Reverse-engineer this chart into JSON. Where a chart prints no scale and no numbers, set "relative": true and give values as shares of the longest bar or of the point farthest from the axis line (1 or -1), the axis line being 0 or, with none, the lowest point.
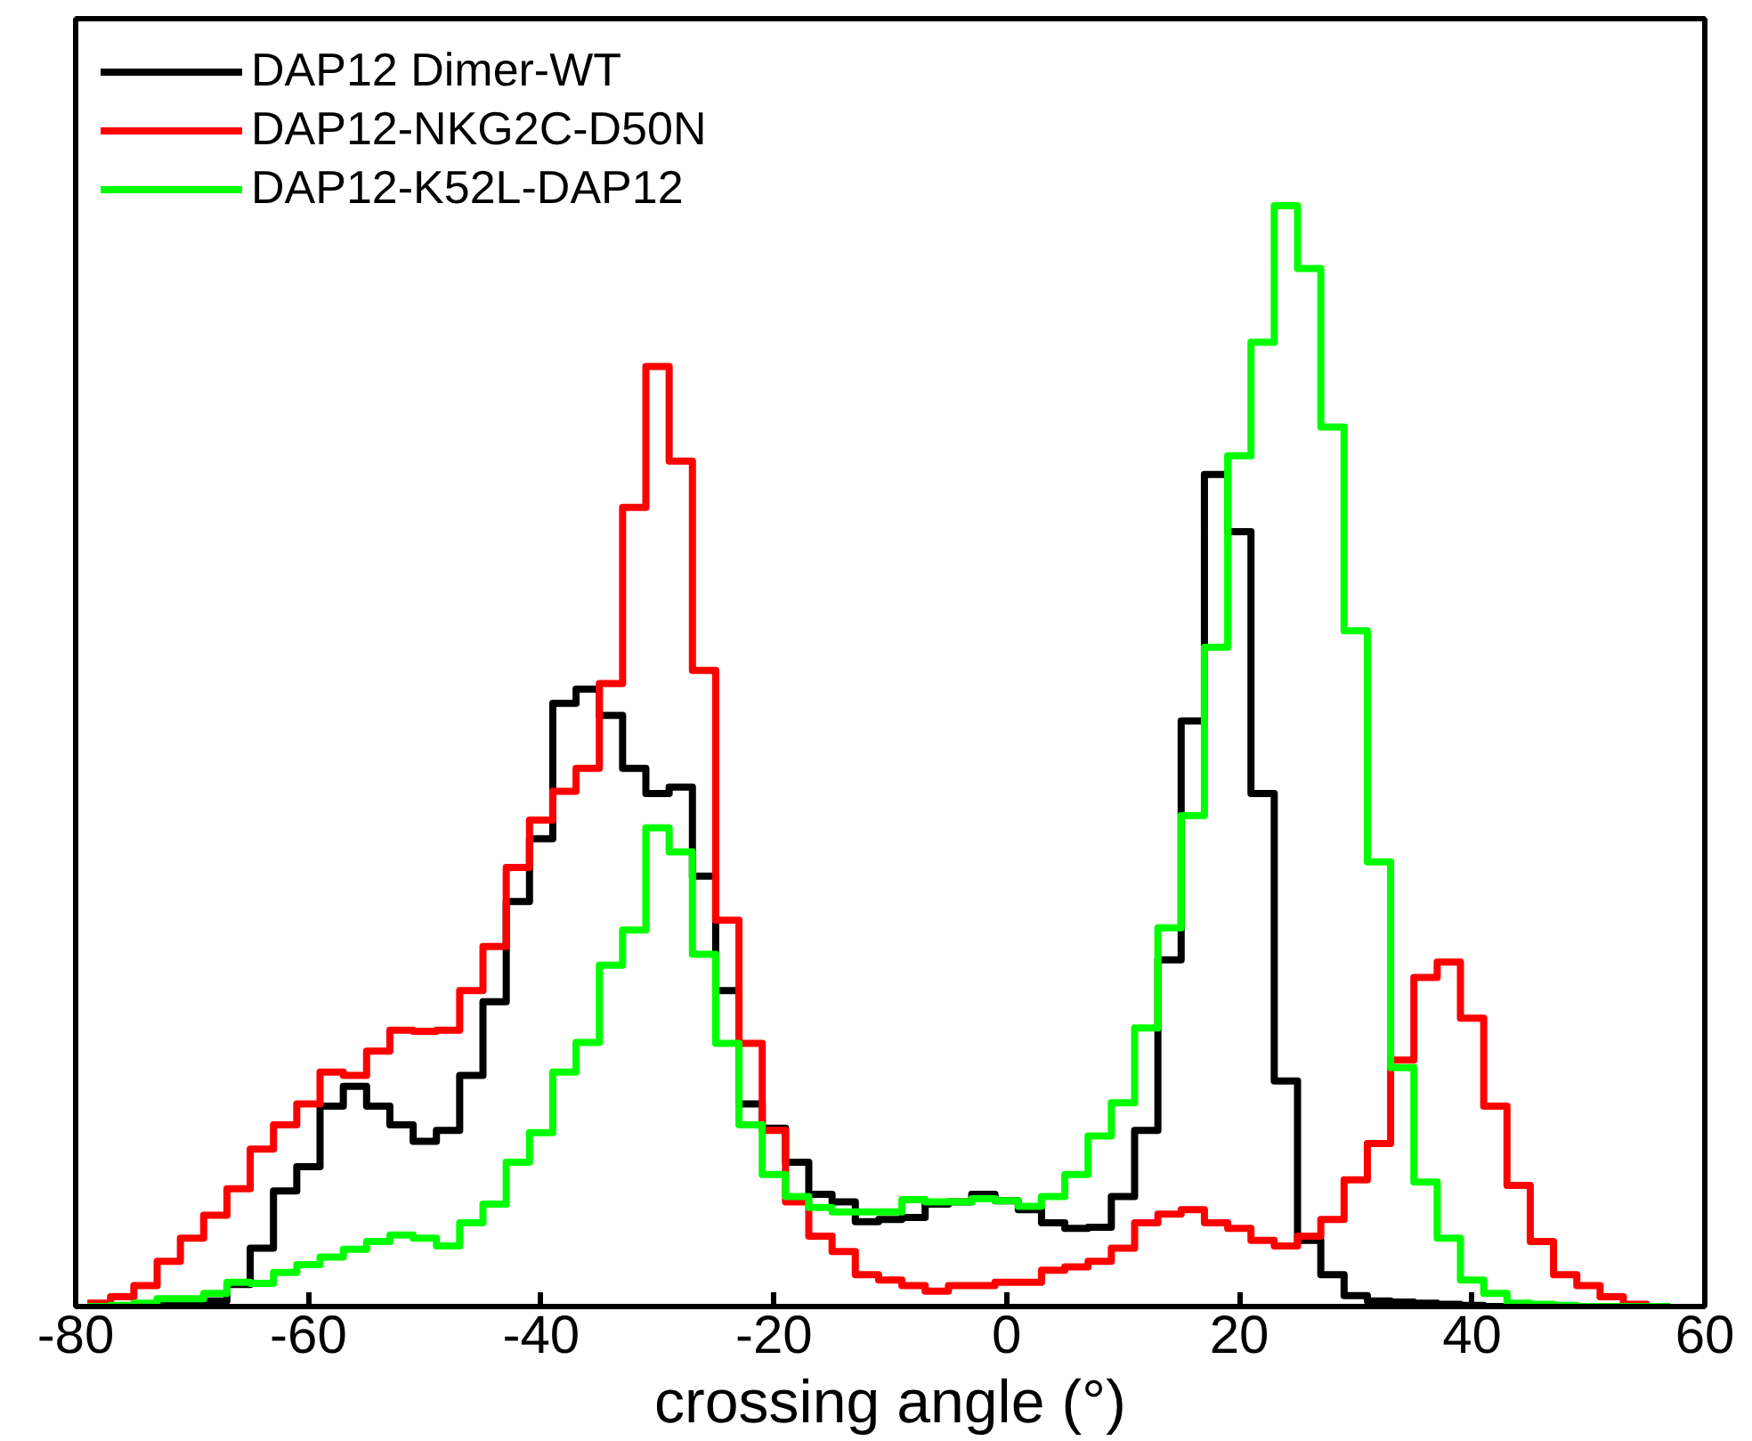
{
  "chart_data": {
    "type": "step",
    "xlabel": "crossing angle (°)",
    "relative": true,
    "x": [
      -79,
      -77,
      -75,
      -73,
      -71,
      -69,
      -67,
      -65,
      -63,
      -61,
      -59,
      -57,
      -55,
      -53,
      -51,
      -49,
      -47,
      -45,
      -43,
      -41,
      -39,
      -37,
      -35,
      -33,
      -31,
      -29,
      -27,
      -25,
      -23,
      -21,
      -19,
      -17,
      -15,
      -13,
      -11,
      -9,
      -7,
      -5,
      -3,
      -1,
      1,
      3,
      5,
      7,
      9,
      11,
      13,
      15,
      17,
      19,
      21,
      23,
      25,
      27,
      29,
      31,
      33,
      35,
      37,
      39,
      41,
      43,
      45,
      47,
      49,
      51,
      53,
      55,
      57
    ],
    "xlim": [
      -80,
      60
    ],
    "xticks": [
      -80,
      -60,
      -40,
      -20,
      0,
      20,
      40,
      60
    ],
    "grid": false,
    "legend": "top left",
    "line_style": "solid",
    "series": [
      {
        "name": "DAP12 Dimer-WT",
        "color": "#000000",
        "values": [
          0,
          0,
          0,
          0.001,
          0.002,
          0.005,
          0.02,
          0.053,
          0.105,
          0.127,
          0.182,
          0.2,
          0.182,
          0.165,
          0.15,
          0.16,
          0.21,
          0.277,
          0.368,
          0.425,
          0.548,
          0.561,
          0.537,
          0.489,
          0.466,
          0.472,
          0.391,
          0.287,
          0.184,
          0.162,
          0.131,
          0.102,
          0.095,
          0.077,
          0.079,
          0.081,
          0.093,
          0.095,
          0.102,
          0.096,
          0.088,
          0.076,
          0.071,
          0.072,
          0.1,
          0.16,
          0.315,
          0.532,
          0.756,
          0.704,
          0.466,
          0.205,
          0.06,
          0.029,
          0.01,
          0.005,
          0.004,
          0.003,
          0.002,
          0.001,
          0,
          0,
          0,
          0,
          0,
          0,
          0,
          0,
          0
        ]
      },
      {
        "name": "DAP12-NKG2C-D50N",
        "color": "#ff0000",
        "values": [
          0.003,
          0.009,
          0.019,
          0.041,
          0.062,
          0.083,
          0.107,
          0.143,
          0.165,
          0.184,
          0.213,
          0.21,
          0.232,
          0.251,
          0.25,
          0.251,
          0.287,
          0.327,
          0.399,
          0.442,
          0.468,
          0.489,
          0.566,
          0.726,
          0.854,
          0.768,
          0.578,
          0.351,
          0.239,
          0.16,
          0.095,
          0.064,
          0.05,
          0.029,
          0.024,
          0.019,
          0.014,
          0.019,
          0.019,
          0.022,
          0.022,
          0.033,
          0.036,
          0.041,
          0.053,
          0.076,
          0.084,
          0.088,
          0.076,
          0.071,
          0.06,
          0.055,
          0.064,
          0.079,
          0.115,
          0.148,
          0.224,
          0.299,
          0.313,
          0.262,
          0.182,
          0.11,
          0.059,
          0.029,
          0.019,
          0.009,
          0.002,
          0,
          0
        ]
      },
      {
        "name": "DAP12-K52L-DAP12",
        "color": "#00ff00",
        "values": [
          0,
          0.001,
          0.003,
          0.007,
          0.007,
          0.012,
          0.022,
          0.021,
          0.031,
          0.038,
          0.045,
          0.052,
          0.059,
          0.065,
          0.062,
          0.055,
          0.076,
          0.093,
          0.131,
          0.158,
          0.213,
          0.24,
          0.31,
          0.342,
          0.435,
          0.413,
          0.32,
          0.239,
          0.165,
          0.12,
          0.1,
          0.09,
          0.086,
          0.086,
          0.086,
          0.097,
          0.095,
          0.095,
          0.098,
          0.096,
          0.091,
          0.1,
          0.12,
          0.155,
          0.185,
          0.253,
          0.344,
          0.446,
          0.599,
          0.773,
          0.876,
          1.0,
          0.943,
          0.799,
          0.614,
          0.404,
          0.217,
          0.113,
          0.062,
          0.024,
          0.012,
          0.003,
          0.002,
          0.001,
          0,
          0,
          0,
          0,
          0
        ]
      }
    ]
  }
}
